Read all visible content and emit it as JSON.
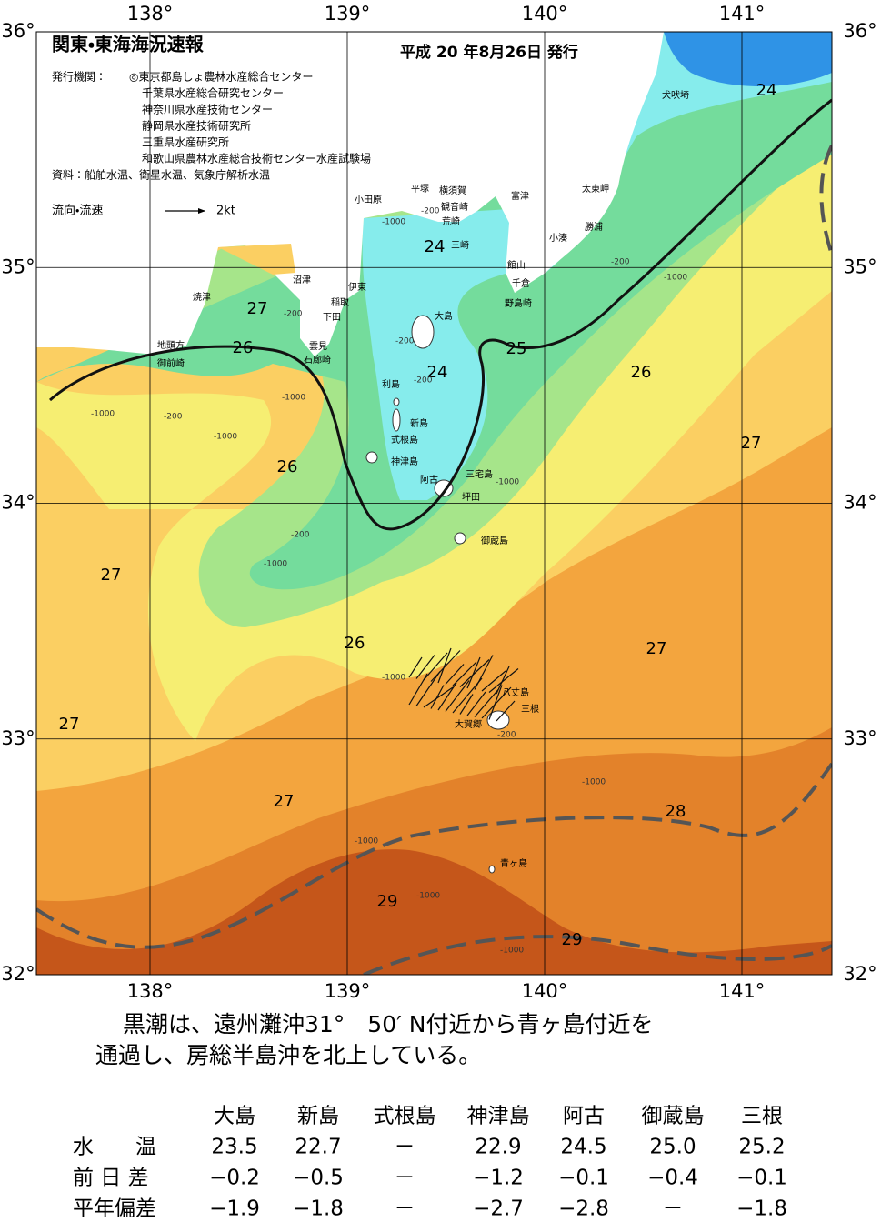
{
  "header": {
    "title": "関東・東海海況速報",
    "issued": "平成 20 年8月26日 発行",
    "issuer_label": "発行機関：",
    "issuers": [
      "◎東京都島しょ農林水産総合センター",
      "千葉県水産総合研究センター",
      "神奈川県水産技術センター",
      "静岡県水産技術研究所",
      "三重県水産研究所",
      "和歌山県農林水産総合技術センター水産試験場"
    ],
    "source": "資料：船舶水温、衛星水温、気象庁解析水温",
    "flow_legend": "流向・流速",
    "flow_scale": "2kt"
  },
  "map": {
    "lon_ticks": [
      {
        "value": 138,
        "label": "138°"
      },
      {
        "value": 139,
        "label": "139°"
      },
      {
        "value": 140,
        "label": "140°"
      },
      {
        "value": 141,
        "label": "141°"
      }
    ],
    "lat_ticks": [
      {
        "value": 36,
        "label": "36°"
      },
      {
        "value": 35,
        "label": "35°"
      },
      {
        "value": 34,
        "label": "34°"
      },
      {
        "value": 33,
        "label": "33°"
      },
      {
        "value": 32,
        "label": "32°"
      }
    ],
    "contour_labels": [
      24,
      24,
      27,
      26,
      24,
      25,
      26,
      27,
      26,
      27,
      26,
      27,
      27,
      27,
      28,
      29,
      29
    ],
    "depth_labels": [
      "-1000",
      "-200",
      "-200",
      "-1000",
      "-200",
      "-1000",
      "-200",
      "-1000",
      "-1000",
      "-200",
      "-200",
      "-1000",
      "-200",
      "-1000",
      "-1000",
      "-200",
      "-1000",
      "-1000",
      "-1000",
      "-1000"
    ],
    "places": [
      "犬吠埼",
      "太東岬",
      "勝浦",
      "小湊",
      "富津",
      "館山",
      "千倉",
      "野島崎",
      "横須賀",
      "観音崎",
      "荒崎",
      "三崎",
      "平塚",
      "小田原",
      "沼津",
      "伊東",
      "稲取",
      "下田",
      "雲見",
      "石廊崎",
      "焼津",
      "地頭方",
      "御前崎",
      "大島",
      "利島",
      "新島",
      "式根島",
      "神津島",
      "三宅島",
      "阿古",
      "坪田",
      "御蔵島",
      "八丈島",
      "三根",
      "大賀郷",
      "青ヶ島"
    ]
  },
  "summary": [
    "黒潮は、遠州灘沖31°　50′ N付近から青ヶ島付近を",
    "通過し、房総半島沖を北上している。"
  ],
  "table": {
    "columns": [
      "大島",
      "新島",
      "式根島",
      "神津島",
      "阿古",
      "御蔵島",
      "三根"
    ],
    "rows": [
      {
        "label": "水　　温",
        "values": [
          "23.5",
          "22.7",
          "－",
          "22.9",
          "24.5",
          "25.0",
          "25.2"
        ]
      },
      {
        "label": "前 日 差",
        "values": [
          "−0.2",
          "−0.5",
          "－",
          "−1.2",
          "−0.1",
          "−0.4",
          "−0.1"
        ]
      },
      {
        "label": "平年偏差",
        "values": [
          "−1.9",
          "−1.8",
          "－",
          "−2.7",
          "−2.8",
          "－",
          "−1.8"
        ]
      }
    ]
  }
}
